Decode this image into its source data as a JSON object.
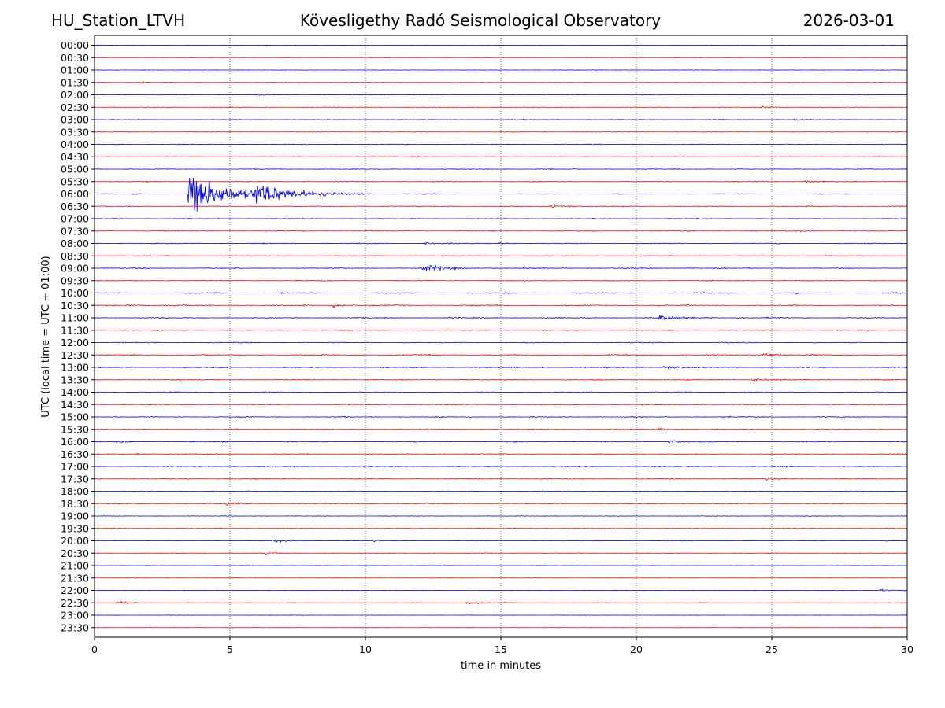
{
  "header": {
    "station": "HU_Station_LTVH",
    "observatory": "Kövesligethy Radó Seismological Observatory",
    "date": "2026-03-01"
  },
  "chart_data": {
    "type": "line",
    "title": "Kövesligethy Radó Seismological Observatory",
    "xlabel": "time in minutes",
    "ylabel": "UTC (local time = UTC + 01:00)",
    "xlim": [
      0,
      30
    ],
    "x_ticks": [
      0,
      5,
      10,
      15,
      20,
      25,
      30
    ],
    "grid": "vertical dotted at x ticks",
    "colors": {
      "even_row": "#0000ff",
      "odd_row": "#ff0000"
    },
    "rows": [
      "00:00",
      "00:30",
      "01:00",
      "01:30",
      "02:00",
      "02:30",
      "03:00",
      "03:30",
      "04:00",
      "04:30",
      "05:00",
      "05:30",
      "06:00",
      "06:30",
      "07:00",
      "07:30",
      "08:00",
      "08:30",
      "09:00",
      "09:30",
      "10:00",
      "10:30",
      "11:00",
      "11:30",
      "12:00",
      "12:30",
      "13:00",
      "13:30",
      "14:00",
      "14:30",
      "15:00",
      "15:30",
      "16:00",
      "16:30",
      "17:00",
      "17:30",
      "18:00",
      "18:30",
      "19:00",
      "19:30",
      "20:00",
      "20:30",
      "21:00",
      "21:30",
      "22:00",
      "22:30",
      "23:00",
      "23:30"
    ],
    "noise_levels": [
      0.6,
      0.5,
      0.6,
      0.7,
      0.8,
      0.7,
      0.8,
      0.9,
      1.1,
      1.2,
      1.1,
      1.2,
      1.3,
      1.4,
      1.1,
      1.4,
      1.5,
      1.4,
      1.5,
      1.4,
      1.8,
      1.9,
      1.7,
      1.4,
      1.5,
      1.8,
      1.6,
      1.5,
      1.5,
      1.5,
      1.5,
      1.4,
      1.6,
      1.5,
      1.4,
      1.3,
      1.0,
      1.1,
      0.8,
      0.8,
      0.9,
      0.8,
      0.6,
      0.6,
      0.7,
      0.8,
      0.5,
      0.5
    ],
    "events": [
      {
        "row": "01:30",
        "minute": 1.75,
        "amplitude": 4,
        "duration": 0.3
      },
      {
        "row": "02:00",
        "minute": 6.0,
        "amplitude": 3,
        "duration": 0.6
      },
      {
        "row": "02:30",
        "minute": 24.6,
        "amplitude": 2.5,
        "duration": 1.0
      },
      {
        "row": "03:00",
        "minute": 25.8,
        "amplitude": 2.5,
        "duration": 0.8
      },
      {
        "row": "04:30",
        "minute": 11.7,
        "amplitude": 3,
        "duration": 0.6
      },
      {
        "row": "05:30",
        "minute": 26.2,
        "amplitude": 2.5,
        "duration": 1.0
      },
      {
        "row": "06:00",
        "minute": 3.45,
        "amplitude": 48,
        "duration": 2.8
      },
      {
        "row": "06:00",
        "minute": 5.85,
        "amplitude": 24,
        "duration": 2.6
      },
      {
        "row": "06:30",
        "minute": 16.8,
        "amplitude": 4,
        "duration": 1.2
      },
      {
        "row": "07:30",
        "minute": 25.9,
        "amplitude": 3,
        "duration": 0.5
      },
      {
        "row": "08:00",
        "minute": 12.2,
        "amplitude": 3.5,
        "duration": 0.6
      },
      {
        "row": "08:00",
        "minute": 14.9,
        "amplitude": 3.5,
        "duration": 0.6
      },
      {
        "row": "09:00",
        "minute": 12.0,
        "amplitude": 8,
        "duration": 1.8
      },
      {
        "row": "10:30",
        "minute": 1.2,
        "amplitude": 3.5,
        "duration": 0.6
      },
      {
        "row": "10:30",
        "minute": 8.8,
        "amplitude": 4,
        "duration": 1.0
      },
      {
        "row": "11:00",
        "minute": 20.8,
        "amplitude": 6,
        "duration": 1.4
      },
      {
        "row": "12:30",
        "minute": 24.6,
        "amplitude": 6,
        "duration": 1.3
      },
      {
        "row": "13:00",
        "minute": 21.0,
        "amplitude": 3,
        "duration": 1.2
      },
      {
        "row": "13:30",
        "minute": 24.3,
        "amplitude": 3,
        "duration": 1.0
      },
      {
        "row": "15:30",
        "minute": 20.8,
        "amplitude": 3,
        "duration": 0.8
      },
      {
        "row": "16:00",
        "minute": 0.8,
        "amplitude": 4,
        "duration": 0.5
      },
      {
        "row": "16:00",
        "minute": 21.2,
        "amplitude": 4,
        "duration": 0.8
      },
      {
        "row": "16:30",
        "minute": 1.5,
        "amplitude": 3,
        "duration": 0.6
      },
      {
        "row": "17:30",
        "minute": 24.8,
        "amplitude": 3,
        "duration": 0.5
      },
      {
        "row": "18:30",
        "minute": 4.85,
        "amplitude": 5,
        "duration": 0.6
      },
      {
        "row": "20:00",
        "minute": 6.5,
        "amplitude": 3,
        "duration": 1.0
      },
      {
        "row": "20:00",
        "minute": 10.3,
        "amplitude": 2.5,
        "duration": 0.5
      },
      {
        "row": "20:30",
        "minute": 6.3,
        "amplitude": 2.5,
        "duration": 0.6
      },
      {
        "row": "22:00",
        "minute": 29.0,
        "amplitude": 2.5,
        "duration": 0.8
      },
      {
        "row": "22:30",
        "minute": 0.8,
        "amplitude": 5,
        "duration": 1.0
      },
      {
        "row": "22:30",
        "minute": 13.7,
        "amplitude": 4,
        "duration": 1.0
      }
    ]
  }
}
